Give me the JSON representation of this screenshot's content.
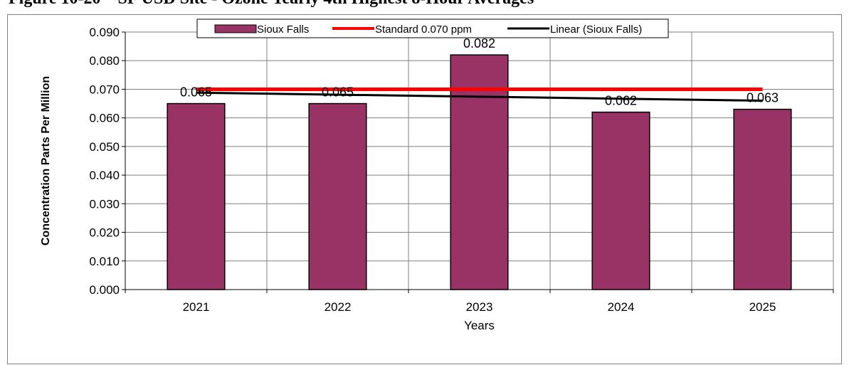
{
  "figure": {
    "title": "Figure 10-20 – SF USD Site - Ozone Yearly 4th Highest 8-Hour Averages"
  },
  "chart_data": {
    "type": "bar",
    "categories": [
      "2021",
      "2022",
      "2023",
      "2024",
      "2025"
    ],
    "series": [
      {
        "name": "Sioux Falls",
        "values": [
          0.065,
          0.065,
          0.082,
          0.062,
          0.063
        ],
        "color": "#993366",
        "data_labels": [
          "0.065",
          "0.065",
          "0.082",
          "0.062",
          "0.063"
        ]
      }
    ],
    "reference_lines": [
      {
        "name": "Standard 0.070 ppm",
        "value": 0.07,
        "color": "#ff0000"
      }
    ],
    "trendlines": [
      {
        "name": "Linear (Sioux Falls)",
        "type": "linear",
        "color": "#000000"
      }
    ],
    "xlabel": "Years",
    "ylabel": "Concentration Parts Per Million",
    "ylim": [
      0,
      0.09
    ],
    "ytick_labels": [
      "0.000",
      "0.010",
      "0.020",
      "0.030",
      "0.040",
      "0.050",
      "0.060",
      "0.070",
      "0.080",
      "0.090"
    ],
    "grid": true,
    "legend_position": "top-center"
  }
}
